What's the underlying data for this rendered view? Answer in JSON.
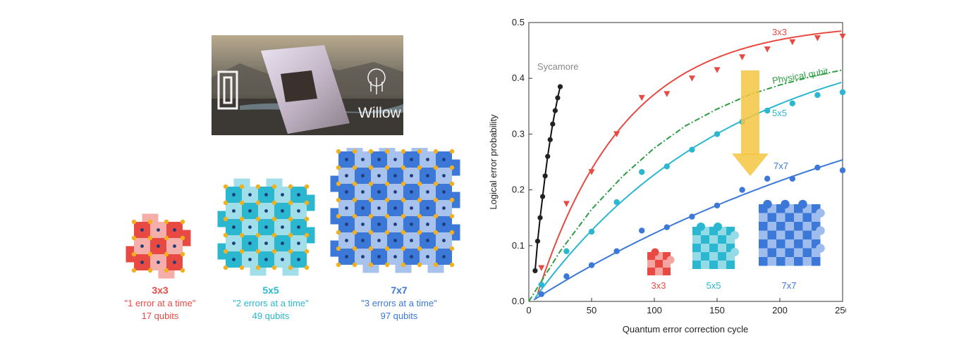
{
  "hero": {
    "brand": "Willow"
  },
  "lattices": [
    {
      "label": "3x3",
      "desc": "\"1 error at a time\"",
      "qubits": "17 qubits",
      "color": "#e84a43",
      "size": 3
    },
    {
      "label": "5x5",
      "desc": "\"2 errors at a time\"",
      "qubits": "49 qubits",
      "color": "#2bb7cf",
      "size": 5
    },
    {
      "label": "7x7",
      "desc": "\"3 errors at a time\"",
      "qubits": "97 qubits",
      "color": "#3c78d8",
      "size": 7
    }
  ],
  "chart_data": {
    "type": "scatter",
    "xlabel": "Quantum error correction cycle",
    "ylabel": "Logical error probability",
    "xlim": [
      0,
      250
    ],
    "ylim": [
      0,
      0.5
    ],
    "xticks": [
      "0",
      "50",
      "100",
      "150",
      "200",
      "250"
    ],
    "yticks": [
      "0.0",
      "0.1",
      "0.2",
      "0.3",
      "0.4",
      "0.5"
    ],
    "series": [
      {
        "name": "Sycamore",
        "color": "#222222",
        "marker": "circle",
        "x": [
          5,
          7,
          9,
          11,
          13,
          15,
          17,
          19,
          21,
          23,
          25
        ],
        "y": [
          0.055,
          0.108,
          0.15,
          0.188,
          0.225,
          0.26,
          0.29,
          0.318,
          0.342,
          0.365,
          0.385
        ]
      },
      {
        "name": "3x3",
        "color": "#e84a43",
        "marker": "triangle",
        "x": [
          10,
          30,
          50,
          70,
          90,
          110,
          130,
          150,
          170,
          190,
          210,
          230,
          250
        ],
        "y": [
          0.06,
          0.175,
          0.232,
          0.3,
          0.365,
          0.372,
          0.4,
          0.415,
          0.438,
          0.452,
          0.465,
          0.472,
          0.475
        ]
      },
      {
        "name": "Physical qubit",
        "color": "#2e9e44",
        "marker": "none",
        "x": [
          0,
          25,
          50,
          75,
          100,
          125,
          150,
          175,
          200,
          225,
          250
        ],
        "y": [
          0,
          0.09,
          0.165,
          0.225,
          0.275,
          0.315,
          0.345,
          0.37,
          0.388,
          0.403,
          0.415
        ]
      },
      {
        "name": "5x5",
        "color": "#2bb7cf",
        "marker": "circle",
        "x": [
          10,
          30,
          50,
          70,
          90,
          110,
          130,
          150,
          170,
          190,
          210,
          230,
          250
        ],
        "y": [
          0.03,
          0.09,
          0.125,
          0.178,
          0.232,
          0.242,
          0.272,
          0.3,
          0.322,
          0.342,
          0.355,
          0.37,
          0.375
        ]
      },
      {
        "name": "7x7",
        "color": "#3c78d8",
        "marker": "circle",
        "x": [
          10,
          30,
          50,
          70,
          90,
          110,
          130,
          150,
          170,
          190,
          210,
          230,
          250
        ],
        "y": [
          0.013,
          0.045,
          0.065,
          0.09,
          0.127,
          0.133,
          0.152,
          0.172,
          0.2,
          0.22,
          0.22,
          0.24,
          0.235
        ]
      }
    ],
    "fit_curves": [
      {
        "name": "3x3",
        "color": "#e84a43",
        "a": 0.5,
        "tau": 70,
        "x0": 7
      },
      {
        "name": "5x5",
        "color": "#2bb7cf",
        "a": 0.5,
        "tau": 160,
        "x0": 5
      },
      {
        "name": "7x7",
        "color": "#3c78d8",
        "a": 0.5,
        "tau": 350,
        "x0": 4
      }
    ],
    "inset_labels": [
      "3x3",
      "5x5",
      "7x7"
    ]
  }
}
